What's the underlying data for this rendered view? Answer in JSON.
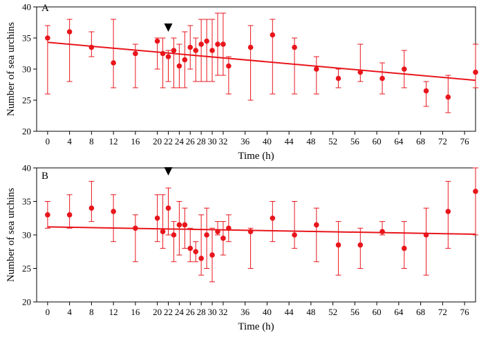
{
  "chart_data": [
    {
      "type": "scatter",
      "panel_label": "A",
      "xlabel": "Time (h)",
      "ylabel": "Number of sea urchins",
      "xlim": [
        -2,
        78
      ],
      "ylim": [
        20,
        40
      ],
      "xticks": [
        0,
        4,
        8,
        12,
        16,
        20,
        22,
        24,
        26,
        28,
        30,
        32,
        36,
        40,
        44,
        48,
        52,
        56,
        60,
        64,
        68,
        72,
        76
      ],
      "yticks": [
        20,
        25,
        30,
        35,
        40
      ],
      "xtick_labels": [
        "0",
        "4",
        "8",
        "12",
        "16",
        "20",
        "22",
        "24",
        "26",
        "28",
        "30",
        "32",
        "36",
        "40",
        "44",
        "48",
        "52",
        "56",
        "60",
        "64",
        "68",
        "72",
        "76"
      ],
      "ytick_labels": [
        "20",
        "25",
        "30",
        "35",
        "40"
      ],
      "marker_x": 22,
      "trend": {
        "x": [
          0,
          78
        ],
        "y": [
          34.3,
          28.2
        ]
      },
      "points": [
        {
          "x": 0,
          "y": 35,
          "lo": 26,
          "hi": 37
        },
        {
          "x": 4,
          "y": 36,
          "lo": 28,
          "hi": 38
        },
        {
          "x": 8,
          "y": 33.5,
          "lo": 32,
          "hi": 36
        },
        {
          "x": 12,
          "y": 31,
          "lo": 27,
          "hi": 38
        },
        {
          "x": 16,
          "y": 32.5,
          "lo": 27,
          "hi": 34
        },
        {
          "x": 20,
          "y": 34.5,
          "lo": 30,
          "hi": 35
        },
        {
          "x": 21,
          "y": 32.5,
          "lo": 27,
          "hi": 35
        },
        {
          "x": 22,
          "y": 32,
          "lo": 28,
          "hi": 33
        },
        {
          "x": 23,
          "y": 33,
          "lo": 27,
          "hi": 35
        },
        {
          "x": 24,
          "y": 30.5,
          "lo": 27,
          "hi": 34
        },
        {
          "x": 25,
          "y": 31.5,
          "lo": 27,
          "hi": 36
        },
        {
          "x": 26,
          "y": 33.5,
          "lo": 30,
          "hi": 37
        },
        {
          "x": 27,
          "y": 33,
          "lo": 28,
          "hi": 35
        },
        {
          "x": 28,
          "y": 34,
          "lo": 28,
          "hi": 38
        },
        {
          "x": 29,
          "y": 34.5,
          "lo": 28,
          "hi": 38
        },
        {
          "x": 30,
          "y": 33,
          "lo": 28,
          "hi": 38
        },
        {
          "x": 31,
          "y": 34,
          "lo": 29,
          "hi": 39
        },
        {
          "x": 32,
          "y": 34,
          "lo": 29,
          "hi": 39
        },
        {
          "x": 33,
          "y": 30.5,
          "lo": 26,
          "hi": 32
        },
        {
          "x": 37,
          "y": 33.5,
          "lo": 25,
          "hi": 37
        },
        {
          "x": 41,
          "y": 35.5,
          "lo": 26,
          "hi": 38
        },
        {
          "x": 45,
          "y": 33.5,
          "lo": 26,
          "hi": 35
        },
        {
          "x": 49,
          "y": 30,
          "lo": 26,
          "hi": 32
        },
        {
          "x": 53,
          "y": 28.5,
          "lo": 27,
          "hi": 30
        },
        {
          "x": 57,
          "y": 29.5,
          "lo": 28,
          "hi": 34
        },
        {
          "x": 61,
          "y": 28.5,
          "lo": 26,
          "hi": 31
        },
        {
          "x": 65,
          "y": 30,
          "lo": 27,
          "hi": 33
        },
        {
          "x": 69,
          "y": 26.5,
          "lo": 24,
          "hi": 28
        },
        {
          "x": 73,
          "y": 25.5,
          "lo": 23,
          "hi": 29
        },
        {
          "x": 78,
          "y": 29.5,
          "lo": 27,
          "hi": 34
        }
      ]
    },
    {
      "type": "scatter",
      "panel_label": "B",
      "xlabel": "Time (h)",
      "ylabel": "Number of sea urchins",
      "xlim": [
        -2,
        78
      ],
      "ylim": [
        20,
        40
      ],
      "xticks": [
        0,
        4,
        8,
        12,
        16,
        20,
        22,
        24,
        26,
        28,
        30,
        32,
        36,
        40,
        44,
        48,
        52,
        56,
        60,
        64,
        68,
        72,
        76
      ],
      "yticks": [
        20,
        25,
        30,
        35,
        40
      ],
      "xtick_labels": [
        "0",
        "4",
        "8",
        "12",
        "16",
        "20",
        "22",
        "24",
        "26",
        "28",
        "30",
        "32",
        "36",
        "40",
        "44",
        "48",
        "52",
        "56",
        "60",
        "64",
        "68",
        "72",
        "76"
      ],
      "ytick_labels": [
        "20",
        "25",
        "30",
        "35",
        "40"
      ],
      "marker_x": 22,
      "trend": {
        "x": [
          0,
          78
        ],
        "y": [
          31.2,
          30.1
        ]
      },
      "points": [
        {
          "x": 0,
          "y": 33,
          "lo": 31,
          "hi": 35
        },
        {
          "x": 4,
          "y": 33,
          "lo": 31,
          "hi": 36
        },
        {
          "x": 8,
          "y": 34,
          "lo": 32,
          "hi": 38
        },
        {
          "x": 12,
          "y": 33.5,
          "lo": 29,
          "hi": 36
        },
        {
          "x": 16,
          "y": 31,
          "lo": 26,
          "hi": 33
        },
        {
          "x": 20,
          "y": 32.5,
          "lo": 29,
          "hi": 36
        },
        {
          "x": 21,
          "y": 30.5,
          "lo": 28,
          "hi": 36
        },
        {
          "x": 22,
          "y": 34,
          "lo": 30,
          "hi": 37
        },
        {
          "x": 23,
          "y": 30,
          "lo": 26,
          "hi": 32
        },
        {
          "x": 24,
          "y": 31.5,
          "lo": 27,
          "hi": 35
        },
        {
          "x": 25,
          "y": 31.5,
          "lo": 28,
          "hi": 34
        },
        {
          "x": 26,
          "y": 28,
          "lo": 26,
          "hi": 31
        },
        {
          "x": 27,
          "y": 27.5,
          "lo": 26,
          "hi": 29
        },
        {
          "x": 28,
          "y": 26.5,
          "lo": 24,
          "hi": 33
        },
        {
          "x": 29,
          "y": 30,
          "lo": 25,
          "hi": 34
        },
        {
          "x": 30,
          "y": 27,
          "lo": 23,
          "hi": 31
        },
        {
          "x": 31,
          "y": 30.5,
          "lo": 30,
          "hi": 32
        },
        {
          "x": 32,
          "y": 29.5,
          "lo": 27,
          "hi": 32
        },
        {
          "x": 33,
          "y": 31,
          "lo": 29,
          "hi": 33
        },
        {
          "x": 37,
          "y": 30.5,
          "lo": 25,
          "hi": 31
        },
        {
          "x": 41,
          "y": 32.5,
          "lo": 29,
          "hi": 35
        },
        {
          "x": 45,
          "y": 30,
          "lo": 28,
          "hi": 35
        },
        {
          "x": 49,
          "y": 31.5,
          "lo": 26,
          "hi": 34
        },
        {
          "x": 53,
          "y": 28.5,
          "lo": 24,
          "hi": 32
        },
        {
          "x": 57,
          "y": 28.5,
          "lo": 25,
          "hi": 31
        },
        {
          "x": 61,
          "y": 30.5,
          "lo": 30,
          "hi": 32
        },
        {
          "x": 65,
          "y": 28,
          "lo": 25,
          "hi": 32
        },
        {
          "x": 69,
          "y": 30,
          "lo": 24,
          "hi": 34
        },
        {
          "x": 73,
          "y": 33.5,
          "lo": 28,
          "hi": 38
        },
        {
          "x": 78,
          "y": 36.5,
          "lo": 30,
          "hi": 40
        }
      ]
    }
  ],
  "colors": {
    "series": "#e8151b",
    "axes": "#000000",
    "marker": "#000000"
  }
}
